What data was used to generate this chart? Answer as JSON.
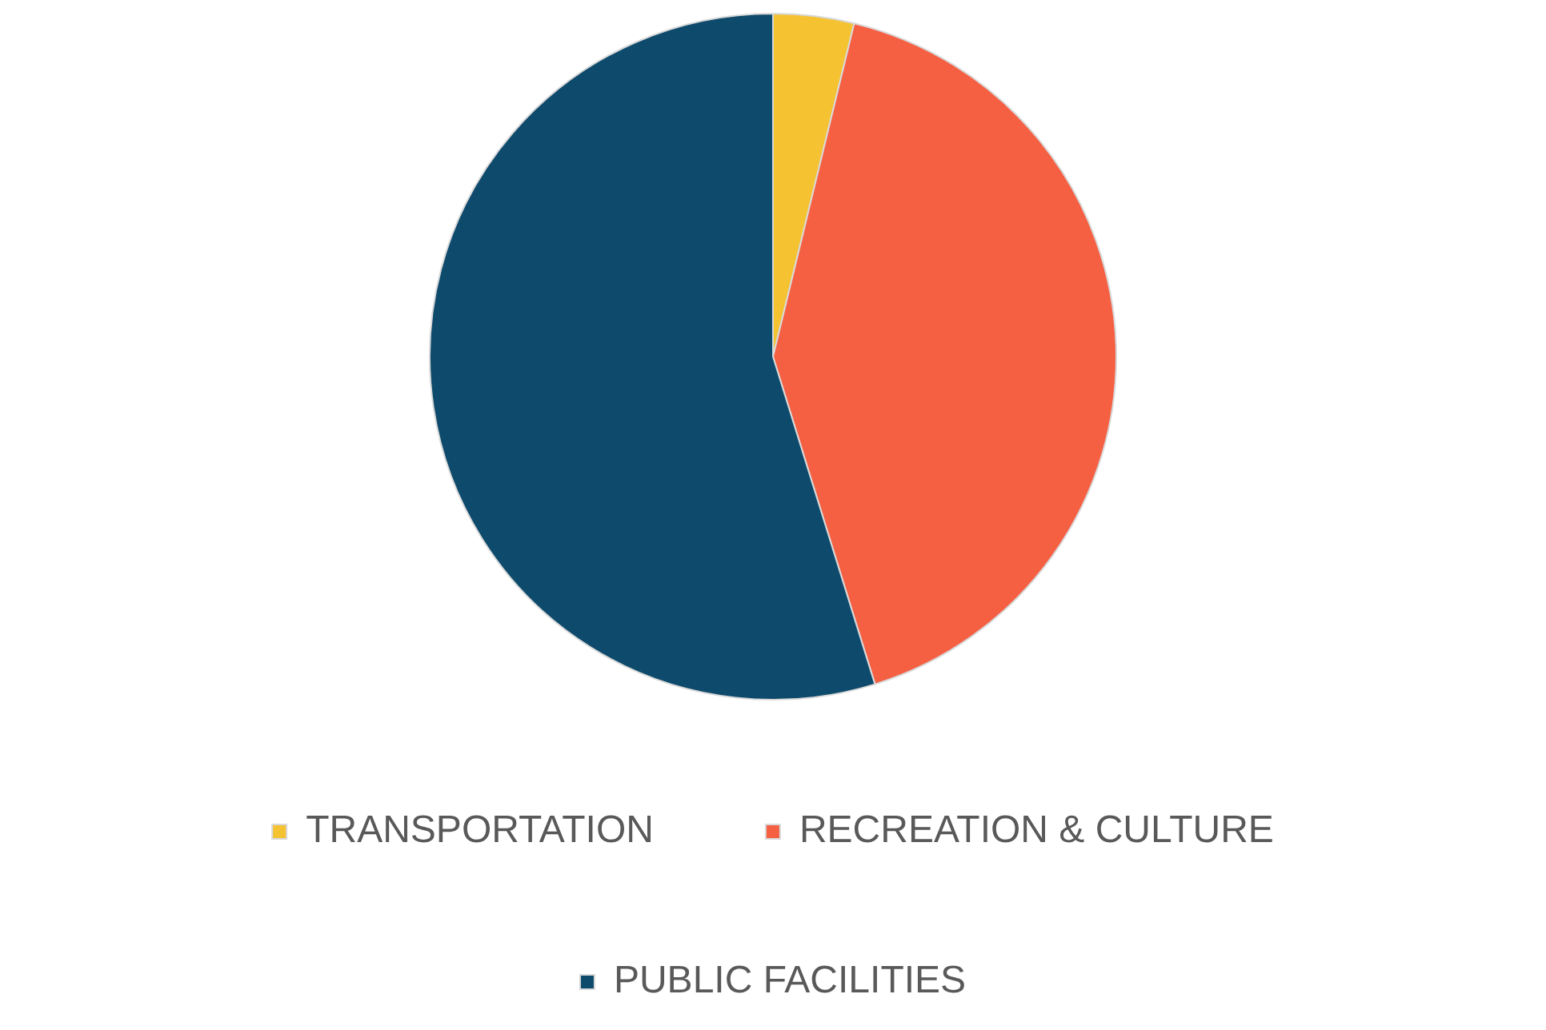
{
  "chart_data": {
    "type": "pie",
    "categories": [
      "TRANSPORTATION",
      "RECREATION & CULTURE",
      "PUBLIC FACILITIES"
    ],
    "values": [
      3.8,
      41.4,
      54.8
    ],
    "colors": [
      "#f5c231",
      "#f55f42",
      "#0e4a6c"
    ],
    "legend": "bottom"
  }
}
